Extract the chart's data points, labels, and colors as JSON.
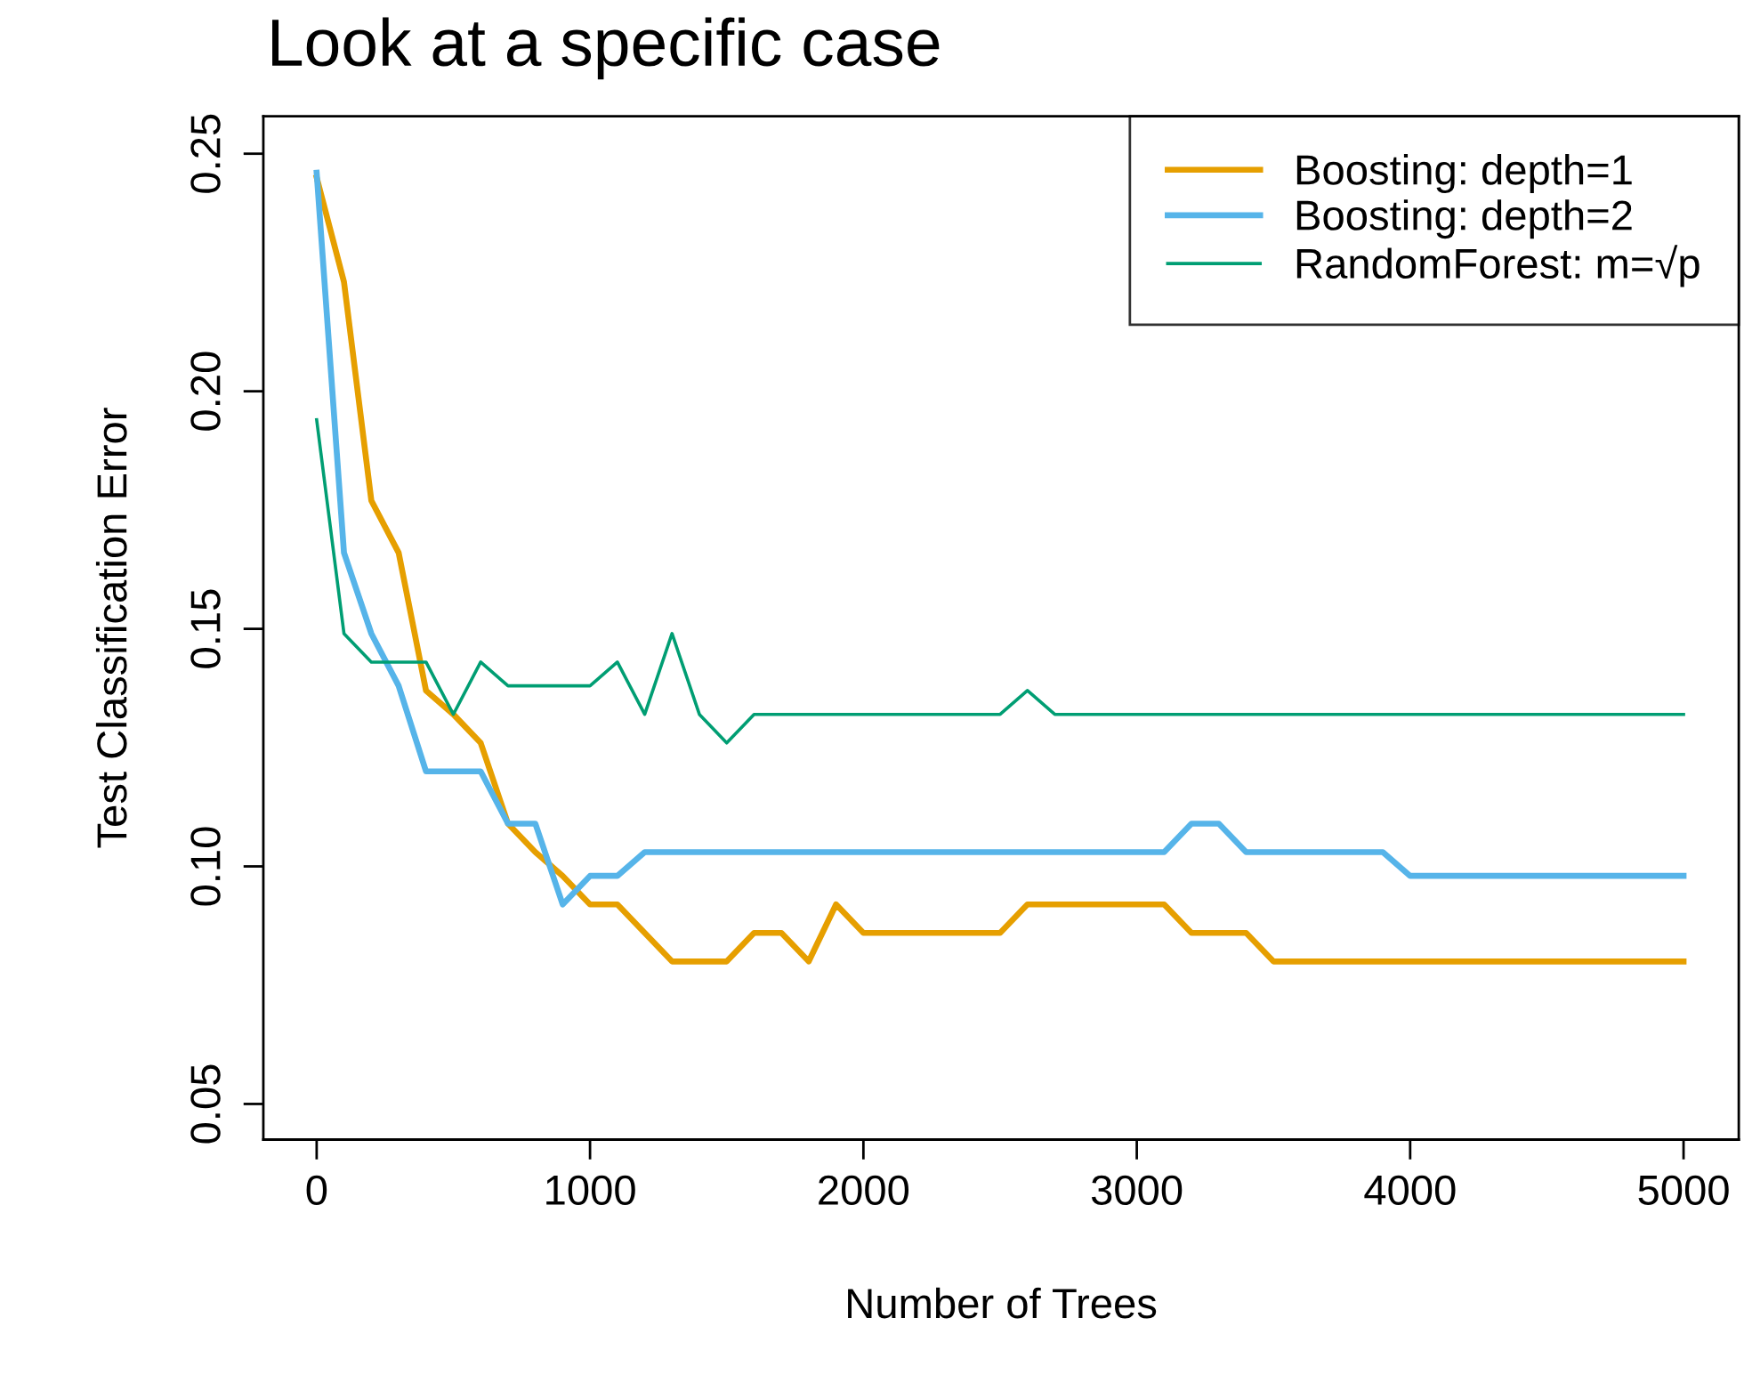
{
  "chart_data": {
    "type": "line",
    "title": "Look at a specific case",
    "xlabel": "Number of Trees",
    "ylabel": "Test Classification Error",
    "xlim": [
      -195,
      5202
    ],
    "ylim": [
      0.0425,
      0.2579
    ],
    "xticks": [
      0,
      1000,
      2000,
      3000,
      4000,
      5000
    ],
    "yticks": [
      {
        "value": 0.05,
        "label": "0.05"
      },
      {
        "value": 0.1,
        "label": "0.10"
      },
      {
        "value": 0.15,
        "label": "0.15"
      },
      {
        "value": 0.2,
        "label": "0.20"
      },
      {
        "value": 0.25,
        "label": "0.25"
      }
    ],
    "grid": false,
    "legend": "top right",
    "marker": "none",
    "line_style": "solid",
    "series": [
      {
        "name": "Boosting: depth=1",
        "color": "#e69f00",
        "x": [
          0,
          100,
          200,
          300,
          400,
          500,
          600,
          700,
          800,
          900,
          1000,
          1100,
          1200,
          1300,
          1500,
          1600,
          1700,
          1800,
          1900,
          2000,
          2500,
          2600,
          3100,
          3200,
          3400,
          3500,
          5000
        ],
        "values": [
          0.245,
          0.223,
          0.177,
          0.166,
          0.137,
          0.132,
          0.126,
          0.109,
          0.103,
          0.098,
          0.092,
          0.092,
          0.086,
          0.08,
          0.08,
          0.086,
          0.086,
          0.08,
          0.092,
          0.086,
          0.086,
          0.092,
          0.092,
          0.086,
          0.086,
          0.08,
          0.08
        ]
      },
      {
        "name": "Boosting: depth=2",
        "color": "#56b4e9",
        "x": [
          0,
          100,
          200,
          300,
          400,
          600,
          700,
          800,
          900,
          1000,
          1100,
          1200,
          3100,
          3200,
          3300,
          3400,
          3900,
          4000,
          5000
        ],
        "values": [
          0.246,
          0.166,
          0.149,
          0.138,
          0.12,
          0.12,
          0.109,
          0.109,
          0.092,
          0.098,
          0.098,
          0.103,
          0.103,
          0.109,
          0.109,
          0.103,
          0.103,
          0.098,
          0.098
        ]
      },
      {
        "name": "RandomForest: m=√p",
        "color": "#009e73",
        "x": [
          0,
          100,
          200,
          400,
          500,
          600,
          700,
          1000,
          1100,
          1200,
          1300,
          1400,
          1500,
          1600,
          2500,
          2600,
          2700,
          5000
        ],
        "values": [
          0.194,
          0.149,
          0.143,
          0.143,
          0.132,
          0.143,
          0.138,
          0.138,
          0.143,
          0.132,
          0.149,
          0.132,
          0.126,
          0.132,
          0.132,
          0.137,
          0.132,
          0.132
        ]
      }
    ]
  }
}
